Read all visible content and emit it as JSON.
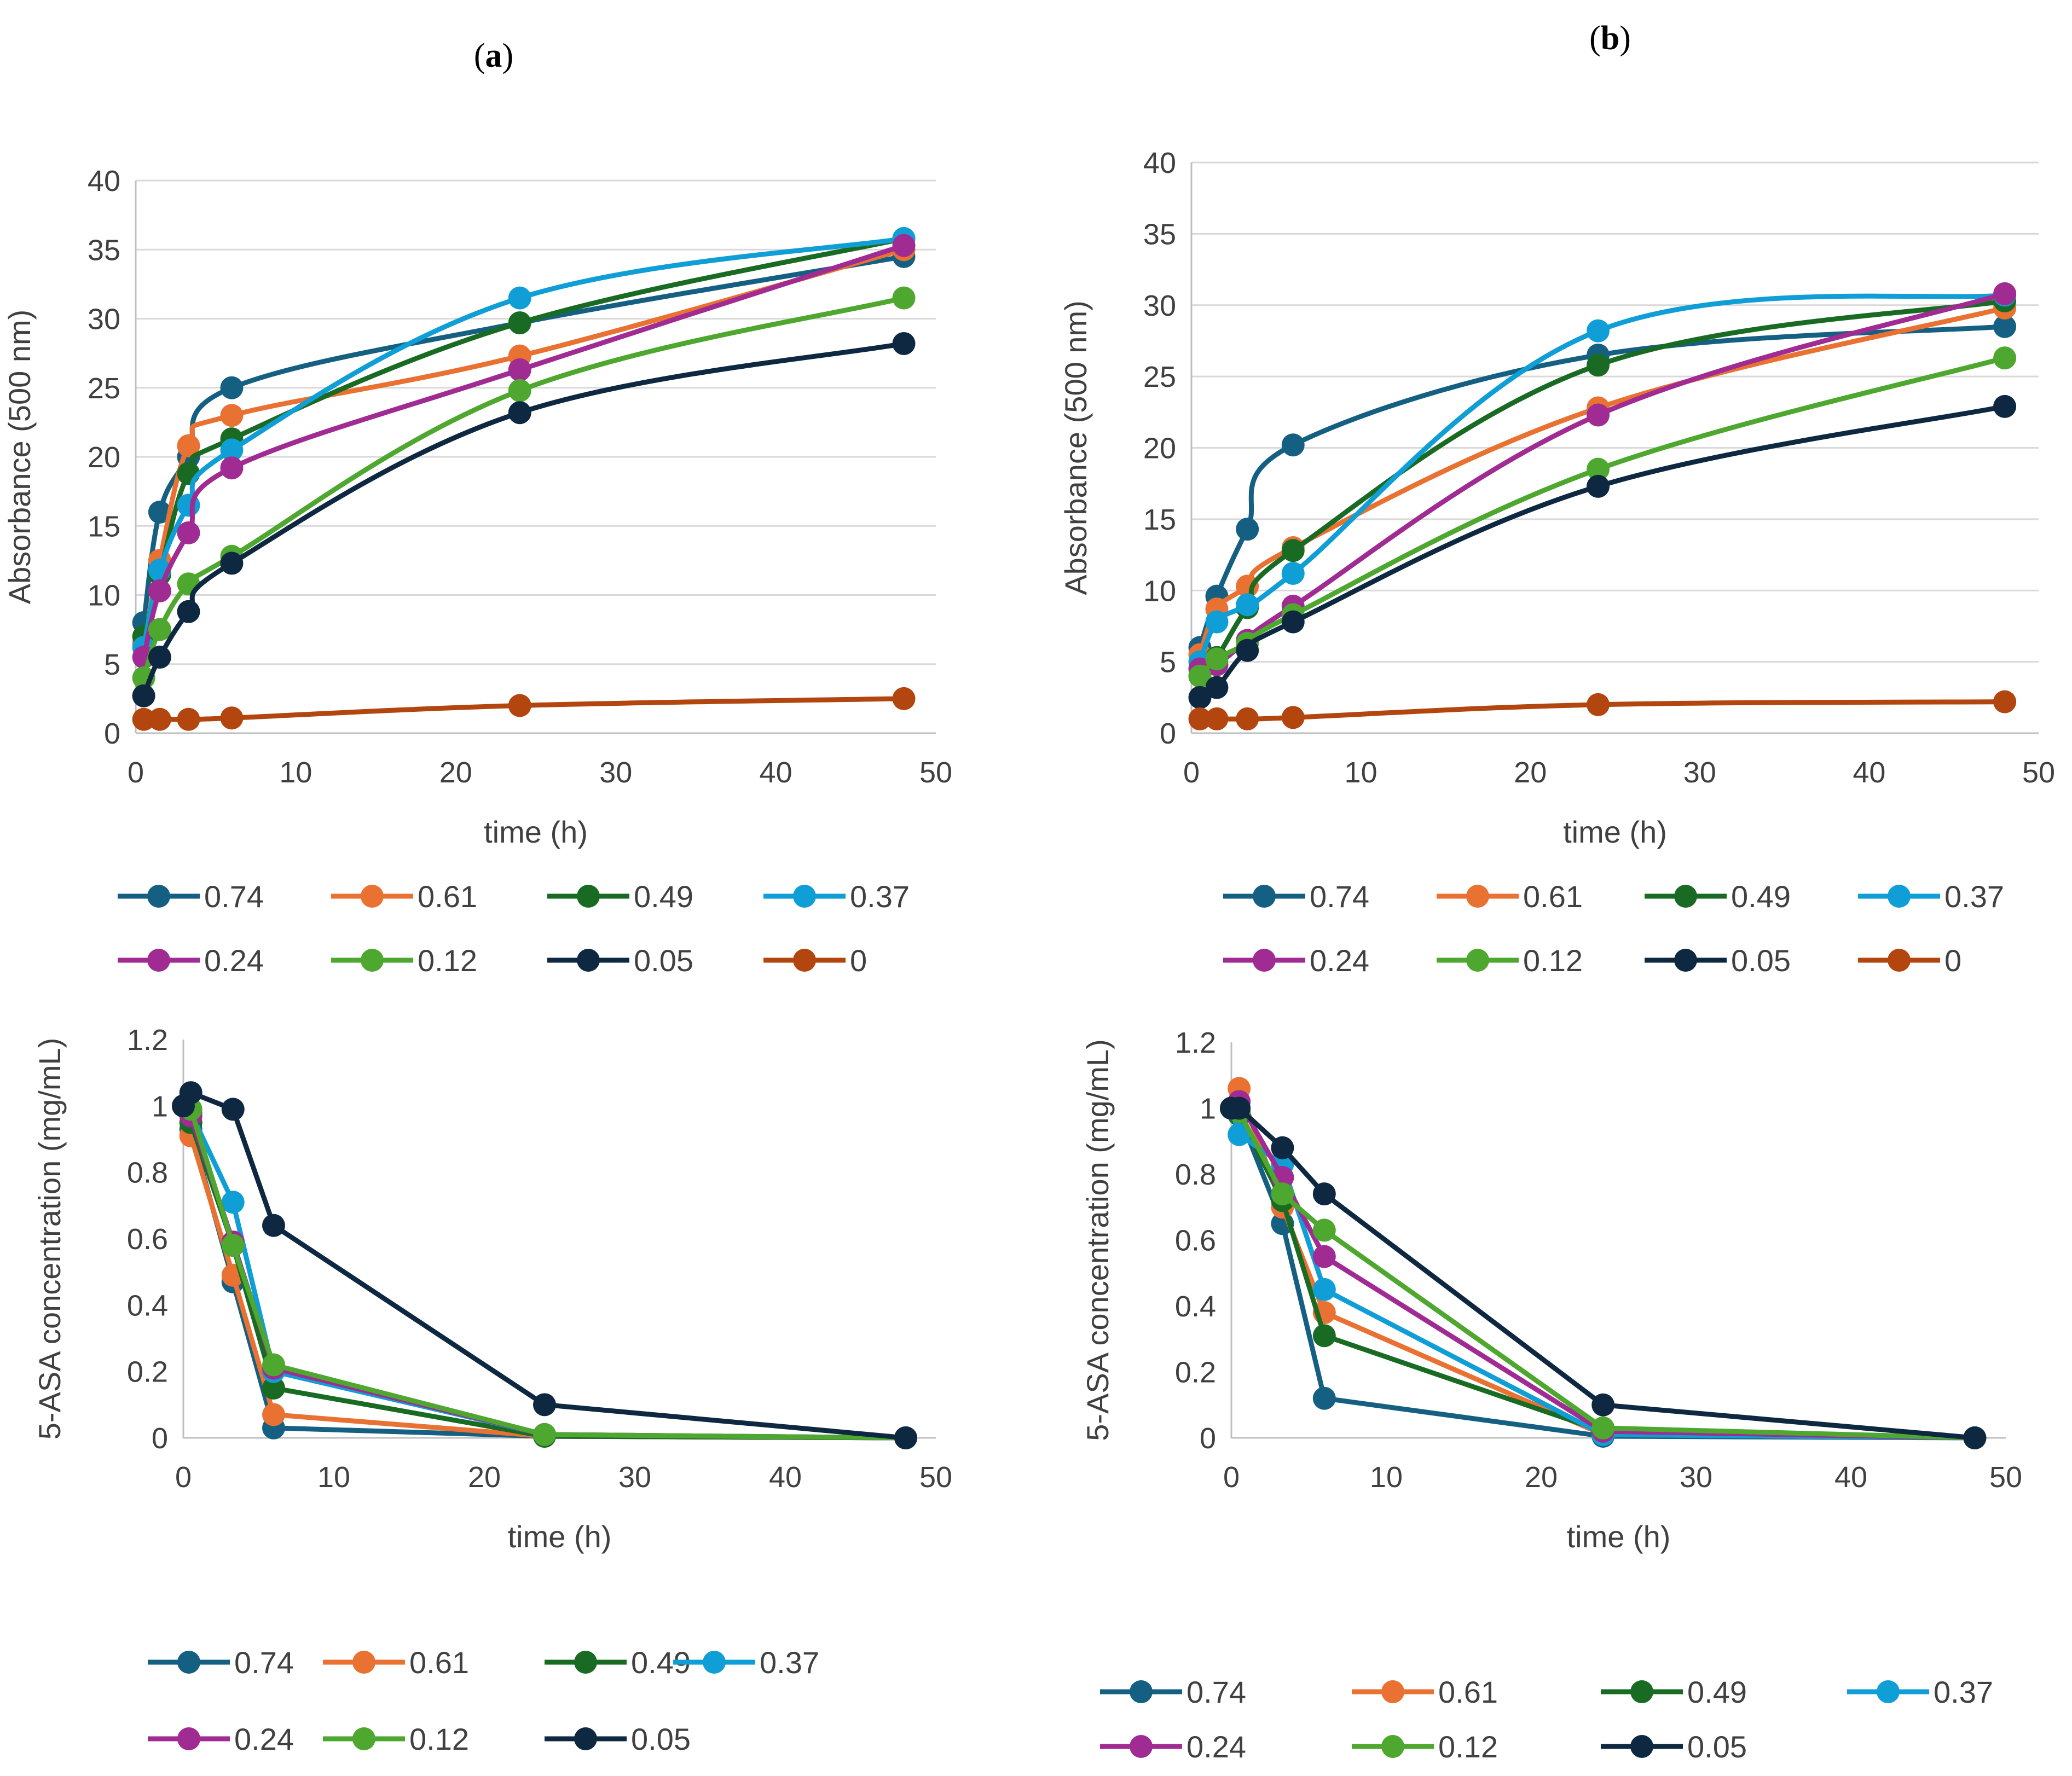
{
  "panels": [
    {
      "letter": "a"
    },
    {
      "letter": "b"
    }
  ],
  "chart_data": [
    {
      "panel": "a",
      "type": "line",
      "smooth": true,
      "xlabel": "time (h)",
      "ylabel": "Absorbance (500 nm)",
      "xlim": [
        0,
        50
      ],
      "ylim": [
        0,
        40
      ],
      "xticks": [
        0,
        10,
        20,
        30,
        40,
        50
      ],
      "yticks": [
        0,
        5,
        10,
        15,
        20,
        25,
        30,
        35,
        40
      ],
      "grid": true,
      "legend_position": "bottom",
      "x": [
        0.5,
        1.5,
        3.3,
        6,
        24,
        48
      ],
      "series": [
        {
          "name": "0.74",
          "color": "#156082",
          "values": [
            8,
            16,
            20,
            25,
            29.7,
            34.5
          ]
        },
        {
          "name": "0.61",
          "color": "#E97132",
          "values": [
            6.5,
            12.5,
            20.8,
            23,
            27.3,
            35
          ]
        },
        {
          "name": "0.49",
          "color": "#196B24",
          "values": [
            7,
            11.5,
            18.8,
            21.3,
            29.7,
            35.8
          ]
        },
        {
          "name": "0.37",
          "color": "#0F9ED5",
          "values": [
            6.2,
            11.8,
            16.5,
            20.5,
            31.5,
            35.8
          ]
        },
        {
          "name": "0.24",
          "color": "#A02B93",
          "values": [
            5.5,
            10.3,
            14.5,
            19.2,
            26.3,
            35.3
          ]
        },
        {
          "name": "0.12",
          "color": "#4EA72E",
          "values": [
            4,
            7.5,
            10.8,
            12.8,
            24.8,
            31.5
          ]
        },
        {
          "name": "0.05",
          "color": "#0E2841",
          "values": [
            2.7,
            5.5,
            8.8,
            12.3,
            23.2,
            28.2
          ]
        },
        {
          "name": "0",
          "color": "#B3450F",
          "values": [
            1,
            1,
            1,
            1.1,
            2,
            2.5
          ]
        }
      ]
    },
    {
      "panel": "b",
      "type": "line",
      "smooth": true,
      "xlabel": "time (h)",
      "ylabel": "Absorbance (500 nm)",
      "xlim": [
        0,
        50
      ],
      "ylim": [
        0,
        40
      ],
      "xticks": [
        0,
        10,
        20,
        30,
        40,
        50
      ],
      "yticks": [
        0,
        5,
        10,
        15,
        20,
        25,
        30,
        35,
        40
      ],
      "grid": true,
      "legend_position": "bottom",
      "x": [
        0.5,
        1.5,
        3.3,
        6,
        24,
        48
      ],
      "series": [
        {
          "name": "0.74",
          "color": "#156082",
          "values": [
            6,
            9.6,
            14.3,
            20.2,
            26.5,
            28.5
          ]
        },
        {
          "name": "0.61",
          "color": "#E97132",
          "values": [
            5.5,
            8.7,
            10.3,
            13,
            22.8,
            29.8
          ]
        },
        {
          "name": "0.49",
          "color": "#196B24",
          "values": [
            4,
            5.3,
            8.8,
            12.8,
            25.8,
            30.3
          ]
        },
        {
          "name": "0.37",
          "color": "#0F9ED5",
          "values": [
            5,
            7.8,
            9,
            11.2,
            28.2,
            30.7
          ]
        },
        {
          "name": "0.24",
          "color": "#A02B93",
          "values": [
            4.5,
            4.8,
            6.5,
            8.9,
            22.3,
            30.8
          ]
        },
        {
          "name": "0.12",
          "color": "#4EA72E",
          "values": [
            4,
            5.2,
            6.3,
            8.3,
            18.5,
            26.3
          ]
        },
        {
          "name": "0.05",
          "color": "#0E2841",
          "values": [
            2.5,
            3.2,
            5.8,
            7.8,
            17.3,
            22.9
          ]
        },
        {
          "name": "0",
          "color": "#B3450F",
          "values": [
            1,
            1,
            1,
            1.1,
            2,
            2.2
          ]
        }
      ]
    },
    {
      "panel": "a",
      "type": "line",
      "smooth": false,
      "xlabel": "time (h)",
      "ylabel": "5-ASA concentration (mg/mL)",
      "xlim": [
        0,
        50
      ],
      "ylim": [
        0,
        1.2
      ],
      "xticks": [
        0,
        10,
        20,
        30,
        40,
        50
      ],
      "yticks": [
        "0",
        "0.2",
        "0.4",
        "0.6",
        "0.8",
        "1",
        "1.2"
      ],
      "grid": false,
      "legend_position": "bottom",
      "x": [
        0,
        0.5,
        3.3,
        6,
        24,
        48
      ],
      "series": [
        {
          "name": "0.74",
          "color": "#156082",
          "values": [
            1,
            0.93,
            0.47,
            0.03,
            0.005,
            0
          ]
        },
        {
          "name": "0.61",
          "color": "#E97132",
          "values": [
            1,
            0.91,
            0.49,
            0.07,
            0.005,
            0
          ]
        },
        {
          "name": "0.49",
          "color": "#196B24",
          "values": [
            1,
            0.95,
            0.58,
            0.15,
            0.005,
            0
          ]
        },
        {
          "name": "0.37",
          "color": "#0F9ED5",
          "values": [
            1,
            0.98,
            0.71,
            0.2,
            0.01,
            0
          ]
        },
        {
          "name": "0.24",
          "color": "#A02B93",
          "values": [
            1,
            0.97,
            0.59,
            0.21,
            0.01,
            0
          ]
        },
        {
          "name": "0.12",
          "color": "#4EA72E",
          "values": [
            1,
            0.99,
            0.58,
            0.22,
            0.01,
            0
          ]
        },
        {
          "name": "0.05",
          "color": "#0E2841",
          "values": [
            1,
            1.04,
            0.99,
            0.64,
            0.1,
            0
          ]
        }
      ]
    },
    {
      "panel": "b",
      "type": "line",
      "smooth": false,
      "xlabel": "time (h)",
      "ylabel": "5-ASA concentration (mg/mL)",
      "xlim": [
        0,
        50
      ],
      "ylim": [
        0,
        1.2
      ],
      "xticks": [
        0,
        10,
        20,
        30,
        40,
        50
      ],
      "yticks": [
        "0",
        "0.2",
        "0.4",
        "0.6",
        "0.8",
        "1",
        "1.2"
      ],
      "grid": false,
      "legend_position": "bottom",
      "x": [
        0,
        0.5,
        3.3,
        6,
        24,
        48
      ],
      "series": [
        {
          "name": "0.74",
          "color": "#156082",
          "values": [
            1,
            0.98,
            0.65,
            0.12,
            0.005,
            0
          ]
        },
        {
          "name": "0.61",
          "color": "#E97132",
          "values": [
            1,
            1.06,
            0.7,
            0.38,
            0.01,
            0
          ]
        },
        {
          "name": "0.49",
          "color": "#196B24",
          "values": [
            1,
            0.98,
            0.72,
            0.31,
            0.02,
            0
          ]
        },
        {
          "name": "0.37",
          "color": "#0F9ED5",
          "values": [
            1,
            0.92,
            0.83,
            0.45,
            0.01,
            0
          ]
        },
        {
          "name": "0.24",
          "color": "#A02B93",
          "values": [
            1,
            1.02,
            0.79,
            0.55,
            0.02,
            0
          ]
        },
        {
          "name": "0.12",
          "color": "#4EA72E",
          "values": [
            1,
            0.99,
            0.74,
            0.63,
            0.03,
            0
          ]
        },
        {
          "name": "0.05",
          "color": "#0E2841",
          "values": [
            1,
            1,
            0.88,
            0.74,
            0.1,
            0
          ]
        }
      ]
    }
  ]
}
